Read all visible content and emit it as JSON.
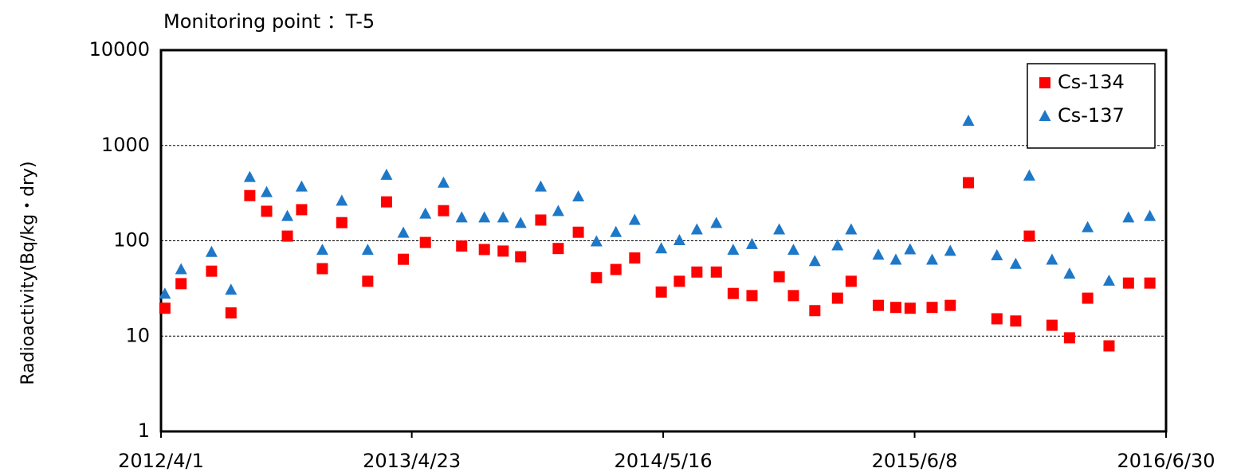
{
  "chart_data": {
    "type": "scatter",
    "title": "Monitoring point ：T-5",
    "y_label": "Radioactivity(Bq/kg・dry)",
    "x": [
      "2012/4/7",
      "2012/5/2",
      "2012/6/18",
      "2012/7/18",
      "2012/8/16",
      "2012/9/11",
      "2012/10/13",
      "2012/11/4",
      "2012/12/6",
      "2013/1/5",
      "2013/2/14",
      "2013/3/15",
      "2013/4/10",
      "2013/5/14",
      "2013/6/11",
      "2013/7/9",
      "2013/8/13",
      "2013/9/11",
      "2013/10/8",
      "2013/11/8",
      "2013/12/5",
      "2014/1/5",
      "2014/2/2",
      "2014/3/4",
      "2014/4/2",
      "2014/5/13",
      "2014/6/10",
      "2014/7/7",
      "2014/8/6",
      "2014/9/1",
      "2014/9/30",
      "2014/11/11",
      "2014/12/3",
      "2015/1/5",
      "2015/2/9",
      "2015/3/2",
      "2015/4/13",
      "2015/5/10",
      "2015/6/1",
      "2015/7/5",
      "2015/8/2",
      "2015/8/30",
      "2015/10/13",
      "2015/11/11",
      "2015/12/2",
      "2016/1/6",
      "2016/2/2",
      "2016/3/1",
      "2016/4/3",
      "2016/5/3",
      "2016/6/5"
    ],
    "series": [
      {
        "name": "Cs-134",
        "color": "#ff0000",
        "marker": "square",
        "values": [
          19.6,
          35.5,
          48,
          17.5,
          298,
          204,
          112,
          212,
          51,
          155,
          37.6,
          256,
          64,
          96,
          207,
          88,
          81,
          78,
          68,
          165,
          83,
          123,
          41,
          50,
          66,
          29,
          37.6,
          47,
          47,
          28,
          26.6,
          42,
          26.6,
          18.5,
          25,
          37.6,
          21,
          20,
          19.6,
          20,
          21,
          407,
          15.2,
          14.4,
          112,
          13,
          9.6,
          25,
          7.9,
          36,
          36
        ]
      },
      {
        "name": "Cs-137",
        "color": "#1e78c8",
        "marker": "triangle",
        "values": [
          27.7,
          50,
          76,
          30.5,
          464,
          322,
          181,
          369,
          80,
          262,
          80,
          490,
          121,
          192,
          405,
          175,
          175,
          175,
          153,
          369,
          204,
          291,
          98,
          123,
          165,
          83,
          101,
          131,
          153,
          80,
          92,
          131,
          80,
          61,
          89,
          131,
          71,
          63,
          81,
          63,
          78,
          1805,
          70,
          57,
          480,
          63,
          45,
          138,
          38,
          175,
          181
        ]
      }
    ],
    "xlim": [
      "2012/4/1",
      "2016/6/30"
    ],
    "xticks": [
      "2012/4/1",
      "2013/4/23",
      "2014/5/16",
      "2015/6/8",
      "2016/6/30"
    ],
    "ylim": [
      1,
      10000
    ],
    "yticks": [
      1,
      10,
      100,
      1000,
      10000
    ],
    "log_y": true,
    "grid": true,
    "legend": "upper right"
  }
}
